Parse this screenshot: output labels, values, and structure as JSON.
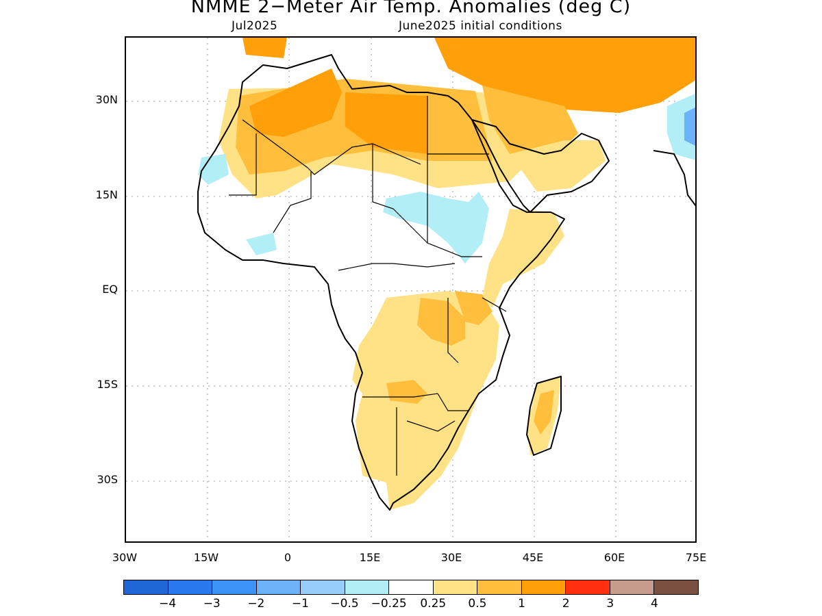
{
  "title": "NMME 2−Meter Air Temp. Anomalies (deg C)",
  "subtitle_left": "Jul2025",
  "subtitle_right": "June2025 initial conditions",
  "axes": {
    "lat_ticks": [
      "30N",
      "15N",
      "EQ",
      "15S",
      "30S"
    ],
    "lon_ticks": [
      "30W",
      "15W",
      "0",
      "15E",
      "30E",
      "45E",
      "60E",
      "75E"
    ],
    "lat_range": [
      -40,
      40
    ],
    "lon_range": [
      -30,
      75
    ],
    "grid": "dotted"
  },
  "colorbar": {
    "colors": [
      "#1f66d6",
      "#2a78ee",
      "#3c93f5",
      "#6cb2f8",
      "#96cdfa",
      "#b2eef6",
      "#ffffff",
      "#ffe285",
      "#ffbf3d",
      "#ffa00a",
      "#ff3010",
      "#c89c8c",
      "#7a5040"
    ],
    "labels": [
      "−4",
      "−3",
      "−2",
      "−1",
      "−0.5",
      "−0.25",
      "0.25",
      "0.5",
      "1",
      "2",
      "3",
      "4"
    ]
  },
  "chart_data": {
    "type": "heatmap",
    "title": "NMME 2−Meter Air Temp. Anomalies (deg C)",
    "units": "deg C",
    "regions": [
      {
        "name": "Sahara / North Africa",
        "anomaly_range": [
          0.5,
          1
        ]
      },
      {
        "name": "Arabian Peninsula / Middle East",
        "anomaly_range": [
          0.5,
          2
        ]
      },
      {
        "name": "Sahel (Chad, Sudan)",
        "anomaly_range": [
          -0.5,
          -0.25
        ]
      },
      {
        "name": "Northwest Africa coast",
        "anomaly_range": [
          -0.5,
          -0.25
        ]
      },
      {
        "name": "Horn of Africa / East Africa",
        "anomaly_range": [
          0.25,
          1
        ]
      },
      {
        "name": "Central-Southern Africa",
        "anomaly_range": [
          0.25,
          1
        ]
      },
      {
        "name": "Madagascar",
        "anomaly_range": [
          0.25,
          1
        ]
      },
      {
        "name": "Northwest India / Pakistan",
        "anomaly_range": [
          -1,
          -0.25
        ]
      }
    ]
  }
}
